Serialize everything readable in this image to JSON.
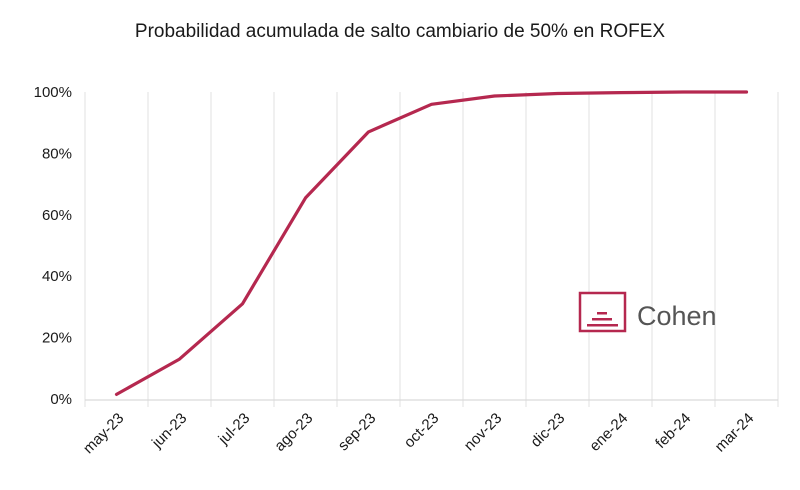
{
  "chart_data": {
    "type": "line",
    "title": "Probabilidad acumulada de salto cambiario de 50% en ROFEX",
    "xlabel": "",
    "ylabel": "",
    "categories": [
      "may-23",
      "jun-23",
      "jul-23",
      "ago-23",
      "sep-23",
      "oct-23",
      "nov-23",
      "dic-23",
      "ene-24",
      "feb-24",
      "mar-24"
    ],
    "values": [
      1.5,
      13,
      31,
      65.5,
      87,
      96,
      98.7,
      99.5,
      99.8,
      100,
      100
    ],
    "ylim": [
      0,
      100
    ],
    "yticks": [
      "0%",
      "20%",
      "40%",
      "60%",
      "80%",
      "100%"
    ],
    "grid": "vertical",
    "line_color": "#b5284f",
    "legend": "none"
  },
  "logo": {
    "text": "Cohen",
    "color": "#b5284f"
  }
}
